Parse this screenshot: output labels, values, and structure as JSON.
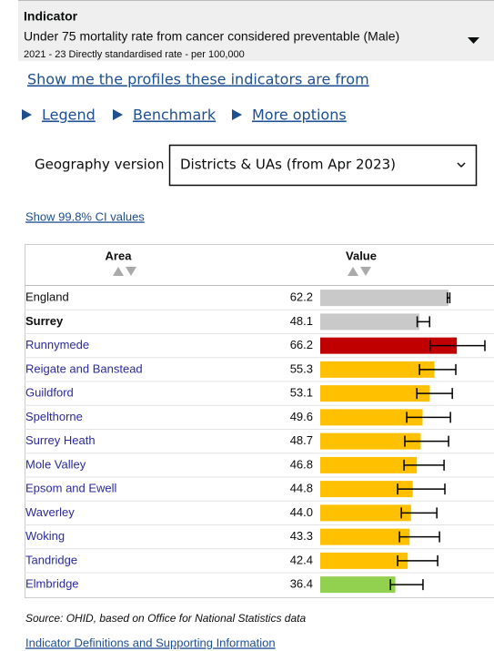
{
  "indicator": {
    "heading": "Indicator",
    "name": "Under 75 mortality rate from cancer considered preventable (Male)",
    "period": "2021 - 23 Directly standardised rate - per 100,000"
  },
  "links": {
    "profiles": "Show me the profiles these indicators are from",
    "legend": "Legend",
    "benchmark": "Benchmark",
    "more_options": "More options"
  },
  "geography": {
    "label": "Geography version",
    "selected": "Districts & UAs (from Apr 2023)"
  },
  "ci_toggle": "Show 99.8% CI values",
  "table": {
    "columns": [
      "Area",
      "Value"
    ],
    "rows": [
      {
        "area": "England",
        "value": 62.2,
        "value_label": "62.2",
        "ci": [
          61.6,
          62.8
        ],
        "color": "#c9c9c9",
        "link": false
      },
      {
        "area": "Surrey",
        "value": 48.1,
        "value_label": "48.1",
        "ci": [
          47.0,
          53.0
        ],
        "color": "#c9c9c9",
        "link": false,
        "bold": true
      },
      {
        "area": "Runnymede",
        "value": 66.2,
        "value_label": "66.2",
        "ci": [
          53.4,
          79.8
        ],
        "color": "#c00000",
        "link": true
      },
      {
        "area": "Reigate and Banstead",
        "value": 55.3,
        "value_label": "55.3",
        "ci": [
          48.1,
          65.7
        ],
        "color": "#ffc000",
        "link": true
      },
      {
        "area": "Guildford",
        "value": 53.1,
        "value_label": "53.1",
        "ci": [
          46.8,
          64.0
        ],
        "color": "#ffc000",
        "link": true
      },
      {
        "area": "Spelthorne",
        "value": 49.6,
        "value_label": "49.6",
        "ci": [
          41.9,
          63.1
        ],
        "color": "#ffc000",
        "link": true
      },
      {
        "area": "Surrey Heath",
        "value": 48.7,
        "value_label": "48.7",
        "ci": [
          41.0,
          62.2
        ],
        "color": "#ffc000",
        "link": true
      },
      {
        "area": "Mole Valley",
        "value": 46.8,
        "value_label": "46.8",
        "ci": [
          40.6,
          60.0
        ],
        "color": "#ffc000",
        "link": true
      },
      {
        "area": "Epsom and Ewell",
        "value": 44.8,
        "value_label": "44.8",
        "ci": [
          37.5,
          60.4
        ],
        "color": "#ffc000",
        "link": true
      },
      {
        "area": "Waverley",
        "value": 44.0,
        "value_label": "44.0",
        "ci": [
          39.3,
          56.5
        ],
        "color": "#ffc000",
        "link": true
      },
      {
        "area": "Woking",
        "value": 43.3,
        "value_label": "43.3",
        "ci": [
          38.4,
          57.8
        ],
        "color": "#ffc000",
        "link": true
      },
      {
        "area": "Tandridge",
        "value": 42.4,
        "value_label": "42.4",
        "ci": [
          37.5,
          56.9
        ],
        "color": "#ffc000",
        "link": true
      },
      {
        "area": "Elmbridge",
        "value": 36.4,
        "value_label": "36.4",
        "ci": [
          34.0,
          49.8
        ],
        "color": "#92d050",
        "link": true
      }
    ]
  },
  "source": "Source: OHID, based on Office for National Statistics data",
  "definitions_link": "Indicator Definitions and Supporting Information"
}
